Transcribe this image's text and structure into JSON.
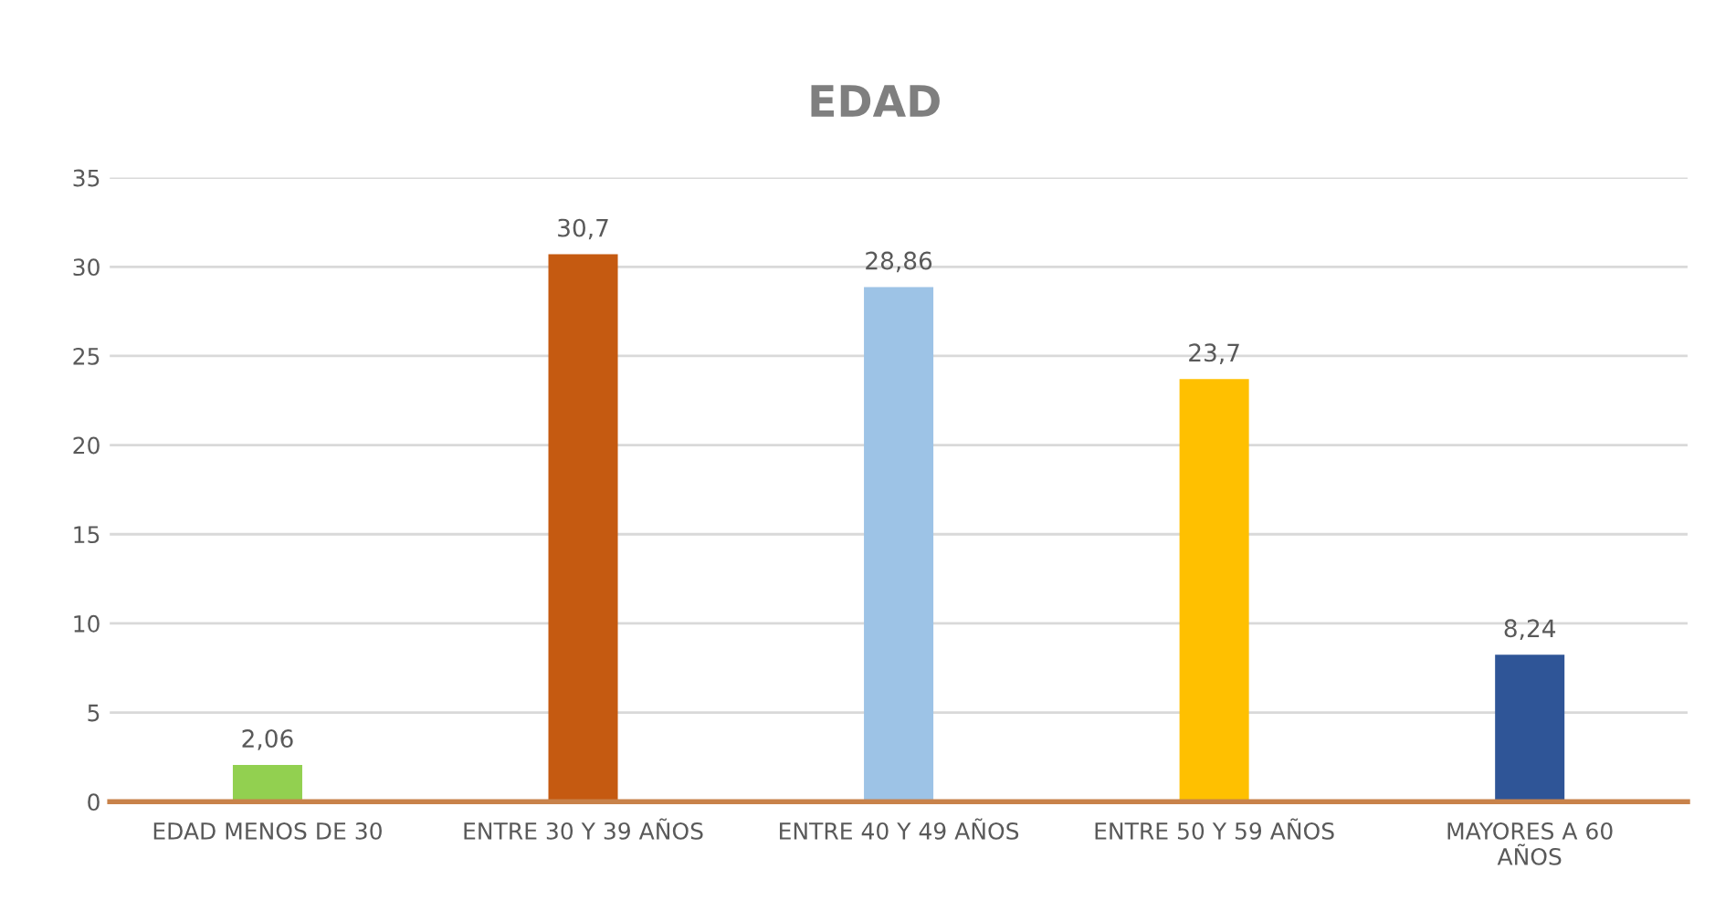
{
  "chart_data": {
    "type": "bar",
    "title": "EDAD",
    "categories": [
      "EDAD MENOS DE 30",
      "ENTRE 30 Y 39 AÑOS",
      "ENTRE 40 Y 49 AÑOS",
      "ENTRE 50 Y 59 AÑOS",
      "MAYORES A 60\nAÑOS"
    ],
    "values": [
      2.06,
      30.7,
      28.86,
      23.7,
      8.24
    ],
    "colors": [
      "#92d050",
      "#c55a11",
      "#9dc3e6",
      "#ffc000",
      "#2f5597"
    ],
    "value_labels": [
      "2,06",
      "30,7",
      "28,86",
      "23,7",
      "8,24"
    ],
    "ylim": [
      0,
      35
    ],
    "yticks": [
      0,
      5,
      10,
      15,
      20,
      25,
      30,
      35
    ],
    "grid": "y",
    "legend": false
  }
}
